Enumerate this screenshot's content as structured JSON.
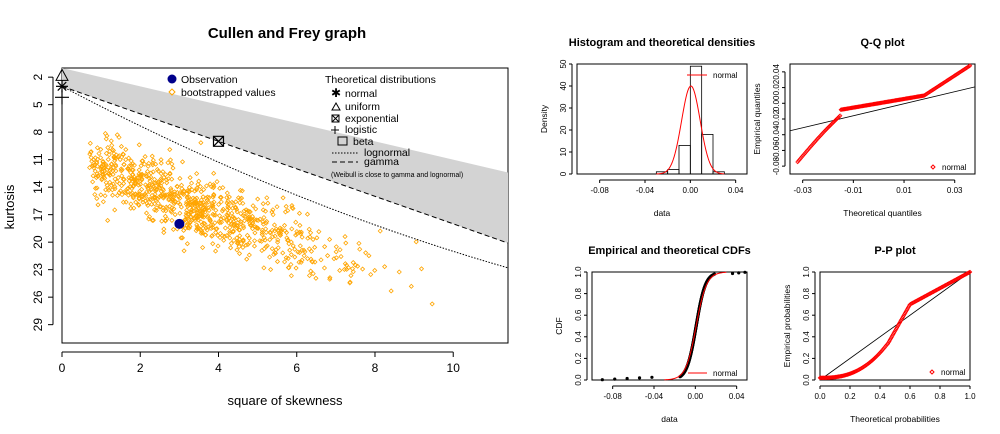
{
  "chart_data": [
    {
      "type": "scatter",
      "title": "Cullen and Frey graph",
      "xlabel": "square of skewness",
      "ylabel": "kurtosis",
      "xlim": [
        0,
        11.4
      ],
      "ylim": [
        1,
        31
      ],
      "y_reversed": true,
      "x_ticks": [
        "0",
        "2",
        "4",
        "6",
        "8",
        "10"
      ],
      "y_ticks": [
        "2",
        "5",
        "8",
        "11",
        "14",
        "17",
        "20",
        "23",
        "26",
        "29"
      ],
      "observation": {
        "x": 3.0,
        "y": 18.0,
        "color": "#00008b"
      },
      "bootstrap_color": "#ffa500",
      "legend_left": {
        "observation_label": "Observation",
        "bootstrap_label": "bootstrapped values"
      },
      "legend_right": {
        "title": "Theoretical distributions",
        "items": [
          "normal",
          "uniform",
          "exponential",
          "logistic",
          "beta",
          "lognormal",
          "gamma"
        ],
        "note": "(Weibull is close to gamma and lognormal)"
      },
      "reference_points": [
        {
          "name": "normal",
          "x": 0,
          "y": 3
        },
        {
          "name": "uniform",
          "x": 0,
          "y": 1.8
        },
        {
          "name": "exponential",
          "x": 4,
          "y": 9
        },
        {
          "name": "logistic",
          "x": 0,
          "y": 4.2
        }
      ],
      "beta_region_color": "#d3d3d3"
    },
    {
      "type": "bar",
      "title": "Histogram and theoretical densities",
      "xlabel": "data",
      "ylabel": "Density",
      "x_ticks": [
        "-0.08",
        "-0.04",
        "0.00",
        "0.04"
      ],
      "y_ticks": [
        "0",
        "10",
        "20",
        "30",
        "40",
        "50"
      ],
      "xlim": [
        -0.1,
        0.05
      ],
      "ylim": [
        0,
        50
      ],
      "bin_edges": [
        -0.03,
        -0.02,
        -0.01,
        0.0,
        0.01,
        0.02,
        0.03
      ],
      "values": [
        1,
        2,
        13,
        49,
        18,
        1
      ],
      "density_curve_color": "#ff0000",
      "legend": "normal"
    },
    {
      "type": "scatter",
      "title": "Q-Q plot",
      "xlabel": "Theoretical quantiles",
      "ylabel": "Empirical quantiles",
      "x_ticks": [
        "-0.03",
        "-0.01",
        "0.01",
        "0.03"
      ],
      "y_ticks": [
        "-0.08",
        "-0.06",
        "-0.04",
        "-0.02",
        "0.00",
        "0.02",
        "0.04"
      ],
      "xlim": [
        -0.035,
        0.038
      ],
      "ylim": [
        -0.09,
        0.05
      ],
      "point_color": "#ff0000",
      "legend": "normal"
    },
    {
      "type": "line",
      "title": "Empirical and theoretical CDFs",
      "xlabel": "data",
      "ylabel": "CDF",
      "x_ticks": [
        "-0.08",
        "-0.04",
        "0.00",
        "0.04"
      ],
      "y_ticks": [
        "0.0",
        "0.2",
        "0.4",
        "0.6",
        "0.8",
        "1.0"
      ],
      "xlim": [
        -0.1,
        0.05
      ],
      "ylim": [
        0,
        1
      ],
      "theoretical_color": "#ff0000",
      "legend": "normal"
    },
    {
      "type": "scatter",
      "title": "P-P plot",
      "xlabel": "Theoretical probabilities",
      "ylabel": "Empirical probabilities",
      "x_ticks": [
        "0.0",
        "0.2",
        "0.4",
        "0.6",
        "0.8",
        "1.0"
      ],
      "y_ticks": [
        "0.0",
        "0.2",
        "0.4",
        "0.6",
        "0.8",
        "1.0"
      ],
      "xlim": [
        0,
        1
      ],
      "ylim": [
        0,
        1
      ],
      "point_color": "#ff0000",
      "legend": "normal"
    }
  ]
}
